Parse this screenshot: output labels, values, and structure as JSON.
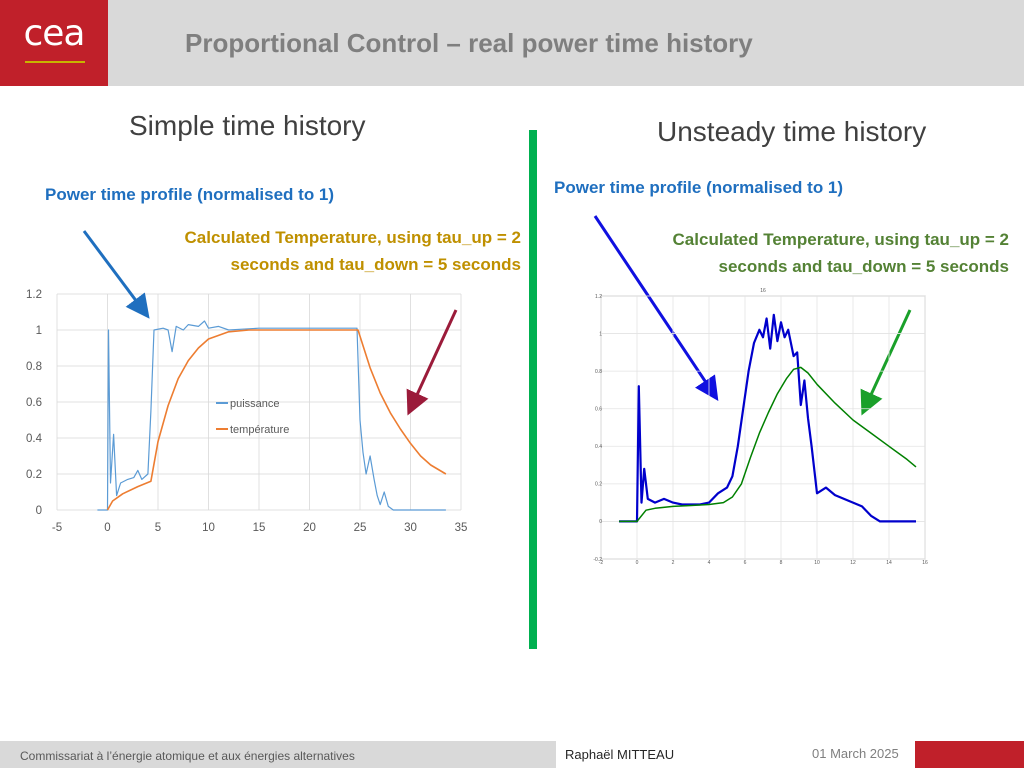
{
  "header": {
    "logo_text": "cea",
    "title": "Proportional Control – real power time history"
  },
  "left": {
    "heading": "Simple time history",
    "caption_power": "Power time profile (normalised to 1)",
    "caption_temp_line1": "Calculated Temperature, using tau_up = 2",
    "caption_temp_line2": "seconds and tau_down = 5 seconds"
  },
  "right": {
    "heading": "Unsteady time history",
    "caption_power": "Power time profile (normalised to 1)",
    "caption_temp_line1": "Calculated Temperature, using tau_up = 2",
    "caption_temp_line2": "seconds and tau_down = 5 seconds"
  },
  "colors": {
    "brand_red": "#c0202a",
    "blue_caption": "#1f6fbf",
    "orange_caption": "#bf9000",
    "green_caption": "#548235",
    "divider_green": "#00b050"
  },
  "chart_data": [
    {
      "type": "line",
      "title": "",
      "xlim": [
        -5,
        35
      ],
      "ylim": [
        0,
        1.2
      ],
      "x_ticks": [
        "-5",
        "0",
        "5",
        "10",
        "15",
        "20",
        "25",
        "30",
        "35"
      ],
      "y_ticks": [
        "0",
        "0.2",
        "0.4",
        "0.6",
        "0.8",
        "1",
        "1.2"
      ],
      "grid": true,
      "legend_position": "center",
      "series": [
        {
          "name": "puissance",
          "color": "#5b9bd5",
          "points": [
            [
              -1,
              0
            ],
            [
              0,
              0
            ],
            [
              0.1,
              1.0
            ],
            [
              0.3,
              0.15
            ],
            [
              0.6,
              0.42
            ],
            [
              0.9,
              0.08
            ],
            [
              1.3,
              0.15
            ],
            [
              2,
              0.17
            ],
            [
              2.6,
              0.18
            ],
            [
              3,
              0.22
            ],
            [
              3.4,
              0.17
            ],
            [
              4,
              0.2
            ],
            [
              4.3,
              0.55
            ],
            [
              4.6,
              1.0
            ],
            [
              5.5,
              1.01
            ],
            [
              6,
              1.0
            ],
            [
              6.4,
              0.88
            ],
            [
              6.8,
              1.02
            ],
            [
              7.5,
              1.0
            ],
            [
              8,
              1.03
            ],
            [
              9,
              1.02
            ],
            [
              9.6,
              1.05
            ],
            [
              10,
              1.01
            ],
            [
              11,
              1.02
            ],
            [
              12,
              1.0
            ],
            [
              15,
              1.01
            ],
            [
              20,
              1.01
            ],
            [
              24.7,
              1.01
            ],
            [
              25,
              0.5
            ],
            [
              25.3,
              0.32
            ],
            [
              25.6,
              0.2
            ],
            [
              26,
              0.3
            ],
            [
              26.4,
              0.17
            ],
            [
              26.7,
              0.08
            ],
            [
              27,
              0.03
            ],
            [
              27.4,
              0.1
            ],
            [
              27.8,
              0.02
            ],
            [
              28.3,
              0
            ],
            [
              33.5,
              0
            ]
          ]
        },
        {
          "name": "température",
          "color": "#ed7d31",
          "points": [
            [
              0,
              0
            ],
            [
              0.5,
              0.05
            ],
            [
              1.5,
              0.09
            ],
            [
              3,
              0.13
            ],
            [
              4.3,
              0.16
            ],
            [
              5,
              0.38
            ],
            [
              6,
              0.58
            ],
            [
              7,
              0.73
            ],
            [
              8,
              0.83
            ],
            [
              9,
              0.9
            ],
            [
              10,
              0.95
            ],
            [
              11,
              0.97
            ],
            [
              12,
              0.99
            ],
            [
              14,
              1.0
            ],
            [
              20,
              1.0
            ],
            [
              24.8,
              1.0
            ],
            [
              26,
              0.79
            ],
            [
              27,
              0.65
            ],
            [
              28,
              0.54
            ],
            [
              29,
              0.45
            ],
            [
              30,
              0.37
            ],
            [
              31,
              0.3
            ],
            [
              32,
              0.25
            ],
            [
              33.5,
              0.2
            ]
          ]
        }
      ]
    },
    {
      "type": "line",
      "title": "16",
      "xlim": [
        -2,
        16
      ],
      "ylim": [
        -0.2,
        1.2
      ],
      "x_ticks": [
        "-2",
        "0",
        "2",
        "4",
        "6",
        "8",
        "10",
        "12",
        "14",
        "16"
      ],
      "y_ticks": [
        "-0.2",
        "0",
        "0.2",
        "0.4",
        "0.6",
        "0.8",
        "1",
        "1.2"
      ],
      "grid": true,
      "series": [
        {
          "color": "#0000cc",
          "points": [
            [
              -1,
              0
            ],
            [
              0,
              0
            ],
            [
              0.1,
              0.72
            ],
            [
              0.25,
              0.1
            ],
            [
              0.4,
              0.28
            ],
            [
              0.6,
              0.12
            ],
            [
              1,
              0.1
            ],
            [
              1.5,
              0.12
            ],
            [
              2,
              0.1
            ],
            [
              2.5,
              0.09
            ],
            [
              3.5,
              0.09
            ],
            [
              4,
              0.1
            ],
            [
              4.5,
              0.15
            ],
            [
              5,
              0.18
            ],
            [
              5.3,
              0.24
            ],
            [
              5.6,
              0.4
            ],
            [
              5.9,
              0.6
            ],
            [
              6.2,
              0.8
            ],
            [
              6.5,
              0.95
            ],
            [
              6.8,
              1.02
            ],
            [
              7,
              0.98
            ],
            [
              7.2,
              1.08
            ],
            [
              7.4,
              0.92
            ],
            [
              7.6,
              1.1
            ],
            [
              7.8,
              0.96
            ],
            [
              8,
              1.06
            ],
            [
              8.2,
              0.98
            ],
            [
              8.4,
              1.02
            ],
            [
              8.7,
              0.88
            ],
            [
              8.9,
              0.9
            ],
            [
              9.1,
              0.62
            ],
            [
              9.3,
              0.75
            ],
            [
              9.5,
              0.55
            ],
            [
              9.7,
              0.4
            ],
            [
              10,
              0.15
            ],
            [
              10.5,
              0.18
            ],
            [
              11,
              0.14
            ],
            [
              11.5,
              0.12
            ],
            [
              12,
              0.1
            ],
            [
              12.5,
              0.08
            ],
            [
              13,
              0.03
            ],
            [
              13.5,
              0
            ],
            [
              15.5,
              0
            ]
          ]
        },
        {
          "color": "#008000",
          "points": [
            [
              -1,
              0
            ],
            [
              0,
              0
            ],
            [
              0.5,
              0.06
            ],
            [
              1,
              0.07
            ],
            [
              2,
              0.08
            ],
            [
              3,
              0.085
            ],
            [
              4,
              0.09
            ],
            [
              4.8,
              0.1
            ],
            [
              5.3,
              0.13
            ],
            [
              5.8,
              0.2
            ],
            [
              6.3,
              0.34
            ],
            [
              6.8,
              0.47
            ],
            [
              7.3,
              0.58
            ],
            [
              7.8,
              0.68
            ],
            [
              8.3,
              0.76
            ],
            [
              8.7,
              0.81
            ],
            [
              9.1,
              0.82
            ],
            [
              9.5,
              0.79
            ],
            [
              10,
              0.73
            ],
            [
              11,
              0.63
            ],
            [
              12,
              0.54
            ],
            [
              13,
              0.47
            ],
            [
              14,
              0.4
            ],
            [
              15,
              0.33
            ],
            [
              15.5,
              0.29
            ]
          ]
        }
      ]
    }
  ],
  "footer": {
    "organisation": "Commissariat à l’énergie atomique et aux énergies alternatives",
    "author": "Raphaël MITTEAU",
    "date": "01 March 2025"
  }
}
